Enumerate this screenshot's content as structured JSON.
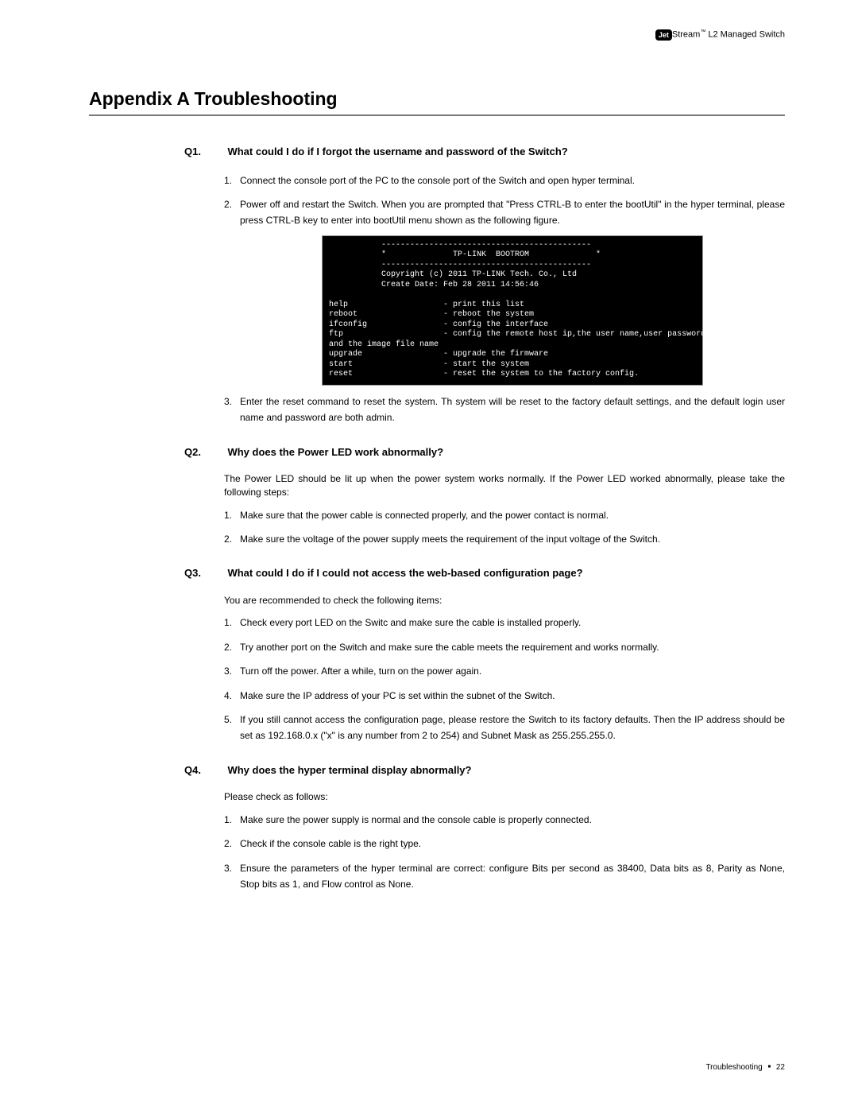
{
  "header": {
    "brand_badge": "Jet",
    "brand_rest": "Stream",
    "tm": "™",
    "product": " L2 Managed Switch"
  },
  "title": "Appendix A  Troubleshooting",
  "q1": {
    "num": "Q1.",
    "title": "What could I do if I forgot the username and password of the Switch?",
    "items": [
      "Connect the console port of the PC to the console port of the Switch and open hyper terminal.",
      "Power off and restart the Switch. When you are prompted that \"Press CTRL-B to enter the bootUtil\" in the hyper terminal, please press CTRL-B key to enter into bootUtil menu shown as the following figure."
    ],
    "after": "Enter the reset command to reset the system. Th system will be reset to the factory default settings, and the default login user name and password are both admin."
  },
  "terminal": "           --------------------------------------------\n           *              TP-LINK  BOOTROM              *\n           --------------------------------------------\n           Copyright (c) 2011 TP-LINK Tech. Co., Ltd\n           Create Date: Feb 28 2011 14:56:46\n\nhelp                    - print this list\nreboot                  - reboot the system\nifconfig                - config the interface\nftp                     - config the remote host ip,the user name,user password\nand the image file name\nupgrade                 - upgrade the firmware\nstart                   - start the system\nreset                   - reset the system to the factory config.",
  "q2": {
    "num": "Q2.",
    "title": "Why does the Power LED work abnormally?",
    "intro": "The Power LED should be lit up when the power system works normally. If the Power LED worked abnormally, please take the following steps:",
    "items": [
      "Make sure that the power cable is connected properly, and the power contact is normal.",
      "Make sure the voltage of the power supply meets the requirement of the input voltage of the Switch."
    ]
  },
  "q3": {
    "num": "Q3.",
    "title": "What could I do if I could not access the web-based configuration page?",
    "intro": "You are recommended to check the following items:",
    "items": [
      "Check every port LED on the Switc and make sure the cable is installed properly.",
      "Try another port on the Switch and make sure the cable meets the requirement and works normally.",
      "Turn off the power. After a while, turn on the power again.",
      "Make sure the IP address of your PC is set within the subnet of the Switch.",
      "If you still cannot access the configuration page, please restore the Switch to its factory defaults. Then the IP address should be set as 192.168.0.x (\"x\" is any number from 2 to 254) and Subnet Mask as 255.255.255.0."
    ]
  },
  "q4": {
    "num": "Q4.",
    "title": "Why does the hyper terminal display abnormally?",
    "intro": "Please check as follows:",
    "items": [
      "Make sure the power supply is normal and the console cable is properly connected.",
      "Check if the console cable is the right type.",
      "Ensure the parameters of the hyper terminal are correct: configure Bits per second as 38400, Data bits as 8, Parity as None, Stop bits as 1, and Flow control as None."
    ]
  },
  "footer": {
    "section": "Troubleshooting",
    "page": "22"
  }
}
